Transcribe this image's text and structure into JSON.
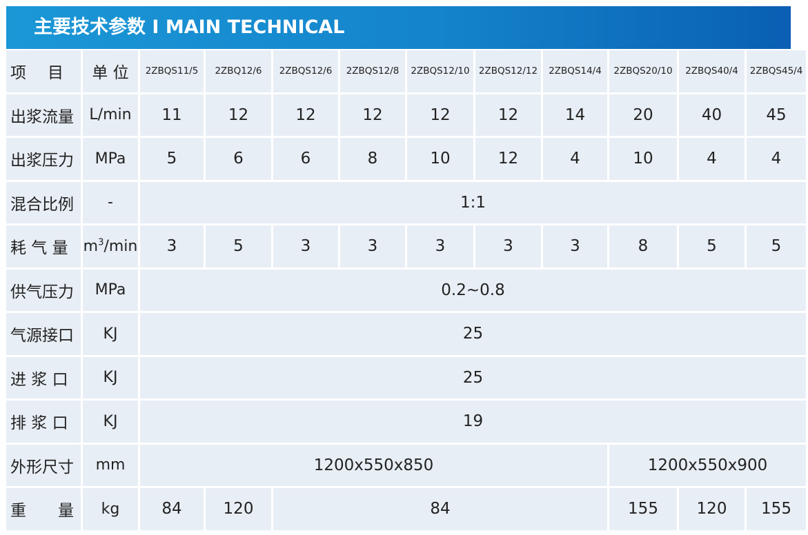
{
  "header": {
    "title": "主要技术参数 I MAIN TECHNICAL"
  },
  "table": {
    "head": {
      "item": "项　目",
      "unit": "单 位",
      "models": [
        "2ZBQS11/5",
        "2ZBQ12/6",
        "2ZBQS12/6",
        "2ZBQS12/8",
        "2ZBQS12/10",
        "2ZBQS12/12",
        "2ZBQS14/4",
        "2ZBQS20/10",
        "2ZBQS40/4",
        "2ZBQS45/4"
      ]
    },
    "rows": {
      "flow": {
        "label": "出浆流量",
        "unit": "L/min",
        "values": [
          "11",
          "12",
          "12",
          "12",
          "12",
          "12",
          "14",
          "20",
          "40",
          "45"
        ]
      },
      "pressure": {
        "label": "出浆压力",
        "unit": "MPa",
        "values": [
          "5",
          "6",
          "6",
          "8",
          "10",
          "12",
          "4",
          "10",
          "4",
          "4"
        ]
      },
      "mix": {
        "label": "混合比例",
        "unit": "-",
        "value": "1:1"
      },
      "air": {
        "label": "耗 气 量",
        "unit_main": "m",
        "unit_sup": "3",
        "unit_tail": "/min",
        "values": [
          "3",
          "5",
          "3",
          "3",
          "3",
          "3",
          "3",
          "8",
          "5",
          "5"
        ]
      },
      "supply": {
        "label": "供气压力",
        "unit": "MPa",
        "value": "0.2~0.8"
      },
      "airport": {
        "label": "气源接口",
        "unit": "KJ",
        "value": "25"
      },
      "inlet": {
        "label": "进 浆 口",
        "unit": "KJ",
        "value": "25"
      },
      "outlet": {
        "label": "排 浆 口",
        "unit": "KJ",
        "value": "19"
      },
      "size": {
        "label": "外形尺寸",
        "unit": "mm",
        "value_a": "1200x550x850",
        "value_b": "1200x550x900"
      },
      "weight": {
        "label": "重　　量",
        "unit": "kg",
        "values": [
          "84",
          "120",
          "84",
          "155",
          "120",
          "155"
        ]
      }
    }
  }
}
